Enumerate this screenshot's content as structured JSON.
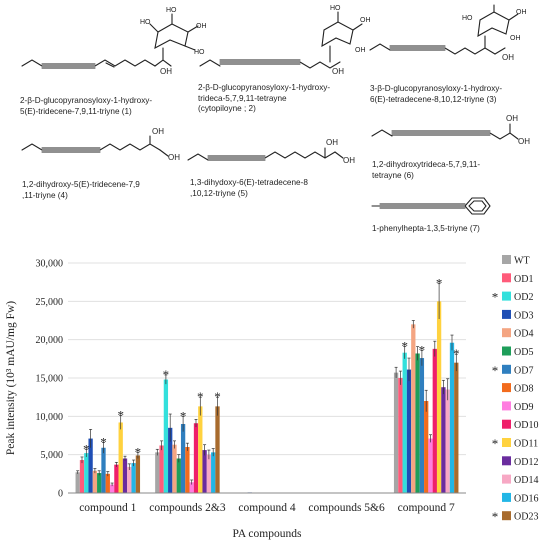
{
  "structures": [
    {
      "label": "2-β-D-glucopyranosyloxy-1-hydroxy-\n5(E)-tridecene-7,9,11-triyne (1)"
    },
    {
      "label": "2-β-D-glucopyranosyloxy-1-hydroxy-\ntrideca-5,7,9,11-tetrayne\n(cytopiloyne ; 2)"
    },
    {
      "label": "3-β-D-glucopyranosyloxy-1-hydroxy-\n6(E)-tetradecene-8,10,12-triyne (3)"
    },
    {
      "label": "1,2-dihydroxy-5(E)-tridecene-7,9\n,11-triyne (4)"
    },
    {
      "label": "1,3-dihydoxy-6(E)-tetradecene-8\n,10,12-triyne (5)"
    },
    {
      "label": "1,2-dihydroxytrideca-5,7,9,11-\ntetrayne (6)"
    },
    {
      "label": "1-phenylhepta-1,3,5-triyne (7)"
    }
  ],
  "chart_data": {
    "type": "bar",
    "ylabel": "Peak intensity (10³ mAU/mg Fw)",
    "xlabel": "PA compounds",
    "ylim": [
      0,
      30000
    ],
    "yticks": [
      "0",
      "5,000",
      "10,000",
      "15,000",
      "20,000",
      "25,000",
      "30,000"
    ],
    "categories": [
      "compound 1",
      "compounds 2&3",
      "compound 4",
      "compounds 5&6",
      "compound 7"
    ],
    "legend_position": "right",
    "series": [
      {
        "name": "WT",
        "color": "#a6a6a6",
        "starred": false,
        "values": [
          2700,
          5300,
          60,
          60,
          15700
        ],
        "errors": [
          200,
          400,
          20,
          20,
          700
        ],
        "stars": [
          false,
          false,
          false,
          false,
          false
        ]
      },
      {
        "name": "OD1",
        "color": "#ff5b7a",
        "starred": false,
        "values": [
          4300,
          6200,
          60,
          60,
          15000
        ],
        "errors": [
          400,
          600,
          20,
          20,
          900
        ],
        "stars": [
          false,
          false,
          false,
          false,
          false
        ]
      },
      {
        "name": "OD2",
        "color": "#33e0dc",
        "starred": true,
        "values": [
          5200,
          14800,
          60,
          60,
          18300
        ],
        "errors": [
          500,
          600,
          20,
          20,
          800
        ],
        "stars": [
          true,
          true,
          false,
          false,
          true
        ]
      },
      {
        "name": "OD3",
        "color": "#1f4fb5",
        "starred": false,
        "values": [
          7100,
          8500,
          80,
          60,
          16100
        ],
        "errors": [
          1200,
          1800,
          20,
          20,
          1500
        ],
        "stars": [
          false,
          false,
          false,
          false,
          false
        ]
      },
      {
        "name": "OD4",
        "color": "#f4a582",
        "starred": false,
        "values": [
          2900,
          6300,
          60,
          60,
          22000
        ],
        "errors": [
          300,
          500,
          20,
          20,
          500
        ],
        "stars": [
          false,
          false,
          false,
          false,
          false
        ]
      },
      {
        "name": "OD5",
        "color": "#1e9e5a",
        "starred": false,
        "values": [
          2600,
          4500,
          60,
          60,
          18200
        ],
        "errors": [
          300,
          500,
          20,
          20,
          900
        ],
        "stars": [
          false,
          false,
          false,
          false,
          false
        ]
      },
      {
        "name": "OD7",
        "color": "#2f7fbf",
        "starred": true,
        "values": [
          5900,
          9000,
          60,
          60,
          17600
        ],
        "errors": [
          700,
          1000,
          20,
          20,
          1000
        ],
        "stars": [
          true,
          true,
          false,
          false,
          true
        ]
      },
      {
        "name": "OD8",
        "color": "#f26b1d",
        "starred": false,
        "values": [
          2500,
          6000,
          60,
          60,
          12000
        ],
        "errors": [
          300,
          500,
          20,
          20,
          1400
        ],
        "stars": [
          false,
          false,
          false,
          false,
          false
        ]
      },
      {
        "name": "OD9",
        "color": "#ff7de0",
        "starred": false,
        "values": [
          1100,
          1400,
          40,
          40,
          7100
        ],
        "errors": [
          200,
          300,
          20,
          20,
          500
        ],
        "stars": [
          false,
          false,
          false,
          false,
          false
        ]
      },
      {
        "name": "OD10",
        "color": "#ef1f6a",
        "starred": false,
        "values": [
          3700,
          9100,
          60,
          60,
          18800
        ],
        "errors": [
          300,
          500,
          20,
          20,
          1000
        ],
        "stars": [
          false,
          false,
          false,
          false,
          false
        ]
      },
      {
        "name": "OD11",
        "color": "#ffd23f",
        "starred": true,
        "values": [
          9200,
          11300,
          60,
          60,
          25000
        ],
        "errors": [
          900,
          1200,
          20,
          20,
          2300
        ],
        "stars": [
          true,
          true,
          false,
          false,
          true
        ]
      },
      {
        "name": "OD12",
        "color": "#6a2c9e",
        "starred": false,
        "values": [
          4500,
          5600,
          60,
          60,
          13800
        ],
        "errors": [
          300,
          700,
          20,
          20,
          900
        ],
        "stars": [
          false,
          false,
          false,
          false,
          false
        ]
      },
      {
        "name": "OD14",
        "color": "#f7a8c4",
        "starred": false,
        "values": [
          3400,
          5000,
          60,
          60,
          13500
        ],
        "errors": [
          400,
          600,
          20,
          20,
          1400
        ],
        "stars": [
          false,
          false,
          false,
          false,
          false
        ]
      },
      {
        "name": "OD16",
        "color": "#22b6e6",
        "starred": false,
        "values": [
          3900,
          5300,
          60,
          60,
          19600
        ],
        "errors": [
          400,
          500,
          20,
          20,
          1000
        ],
        "stars": [
          false,
          false,
          false,
          false,
          false
        ]
      },
      {
        "name": "OD23",
        "color": "#a86b2d",
        "starred": true,
        "values": [
          4900,
          11300,
          60,
          60,
          17000
        ],
        "errors": [
          400,
          1200,
          20,
          20,
          1100
        ],
        "stars": [
          true,
          true,
          false,
          false,
          true
        ]
      }
    ]
  }
}
